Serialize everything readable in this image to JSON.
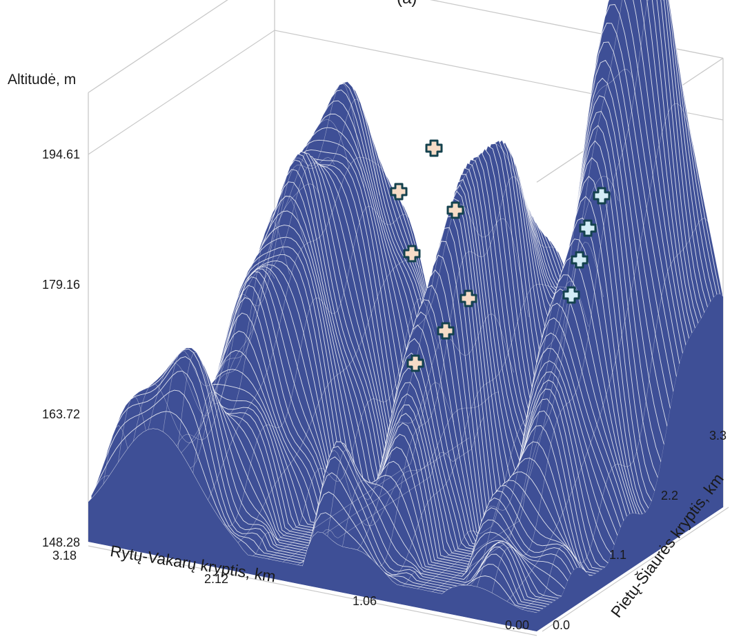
{
  "chart_data": {
    "type": "surface",
    "title": "(a)",
    "zlabel": "Altitudė, m",
    "xlabel": "Rytų-Vakarų kryptis, km",
    "ylabel": "Pietų-Šiaurės kryptis, km",
    "z_ticks": [
      "194.61",
      "179.16",
      "163.72",
      "148.28"
    ],
    "x_ticks": [
      "3.18",
      "2.12",
      "1.06",
      "0.00"
    ],
    "y_ticks": [
      "0.0",
      "1.1",
      "2.2",
      "3.3"
    ],
    "zlim": [
      148.28,
      202
    ],
    "xlim": [
      0,
      3.18
    ],
    "ylim": [
      0,
      3.3
    ],
    "surface_color": "#3e4f96",
    "grid_line_color": "#ffffff",
    "box_color": "#c8c8c8",
    "markers": [
      {
        "group": "peach",
        "color": "#f6dcc7"
      },
      {
        "group": "light-blue",
        "color": "#d3ecf6"
      }
    ],
    "marker_outline_color": "#14424e"
  }
}
